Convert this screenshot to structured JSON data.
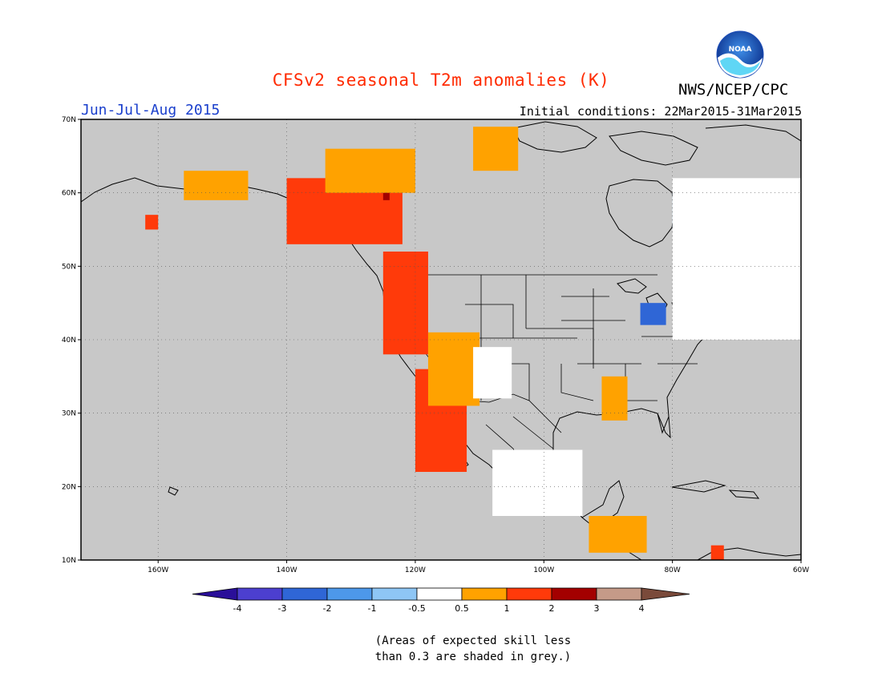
{
  "title": "CFSv2 seasonal T2m anomalies (K)",
  "org": "NWS/NCEP/CPC",
  "logo_text": "NOAA",
  "season": "Jun-Jul-Aug 2015",
  "initial_conditions": "Initial conditions: 22Mar2015-31Mar2015",
  "skill_note_line1": "(Areas of expected skill less",
  "skill_note_line2": "than 0.3 are shaded in grey.)",
  "map": {
    "projection": "cylindrical",
    "lon_range": [
      -172,
      -60
    ],
    "lat_range": [
      10,
      70
    ],
    "lon_ticks": [
      {
        "value": -160,
        "label": "160W"
      },
      {
        "value": -140,
        "label": "140W"
      },
      {
        "value": -120,
        "label": "120W"
      },
      {
        "value": -100,
        "label": "100W"
      },
      {
        "value": -80,
        "label": "80W"
      },
      {
        "value": -60,
        "label": "60W"
      }
    ],
    "lat_ticks": [
      {
        "value": 10,
        "label": "10N"
      },
      {
        "value": 20,
        "label": "20N"
      },
      {
        "value": 30,
        "label": "30N"
      },
      {
        "value": 40,
        "label": "40N"
      },
      {
        "value": 50,
        "label": "50N"
      },
      {
        "value": 60,
        "label": "60N"
      },
      {
        "value": 70,
        "label": "70N"
      }
    ],
    "grid": true,
    "background_color": "#c8c8c8"
  },
  "colorbar": {
    "levels": [
      "-4",
      "-3",
      "-2",
      "-1",
      "-0.5",
      "0.5",
      "1",
      "2",
      "3",
      "4"
    ],
    "colors": [
      "#2a0f99",
      "#4c3fcf",
      "#2f66d6",
      "#4d98ea",
      "#8ec6f5",
      "#ffffff",
      "#ffa200",
      "#ff3a0a",
      "#a30000",
      "#c59a88",
      "#7a4a3a"
    ]
  },
  "chart_data": {
    "type": "heatmap",
    "title": "CFSv2 seasonal T2m anomalies (K)",
    "period": "Jun-Jul-Aug 2015",
    "units": "K",
    "categories": [
      "<-4",
      "-4 to -3",
      "-3 to -2",
      "-2 to -1",
      "-1 to -0.5",
      "-0.5 to 0.5",
      "0.5 to 1",
      "1 to 2",
      "2 to 3",
      "3 to 4",
      ">4"
    ],
    "regions": [
      {
        "name": "Pacific Northwest coast",
        "lon": [
          -125,
          -118
        ],
        "lat": [
          38,
          52
        ],
        "anomaly_class": "1 to 2"
      },
      {
        "name": "British Columbia / Yukon",
        "lon": [
          -140,
          -122
        ],
        "lat": [
          53,
          62
        ],
        "anomaly_class": "1 to 2"
      },
      {
        "name": "Northern BC hotspot",
        "lon": [
          -125,
          -124
        ],
        "lat": [
          59,
          61
        ],
        "anomaly_class": "2 to 3"
      },
      {
        "name": "Southern Alaska",
        "lon": [
          -156,
          -146
        ],
        "lat": [
          59,
          63
        ],
        "anomaly_class": "0.5 to 1"
      },
      {
        "name": "Alaska Peninsula",
        "lon": [
          -162,
          -160
        ],
        "lat": [
          55,
          57
        ],
        "anomaly_class": "1 to 2"
      },
      {
        "name": "Northwest Territories",
        "lon": [
          -134,
          -120
        ],
        "lat": [
          60,
          66
        ],
        "anomaly_class": "0.5 to 1"
      },
      {
        "name": "Nunavut south",
        "lon": [
          -111,
          -104
        ],
        "lat": [
          63,
          69
        ],
        "anomaly_class": "0.5 to 1"
      },
      {
        "name": "California / Baja",
        "lon": [
          -120,
          -112
        ],
        "lat": [
          22,
          36
        ],
        "anomaly_class": "1 to 2"
      },
      {
        "name": "Great Basin / Southwest",
        "lon": [
          -118,
          -110
        ],
        "lat": [
          31,
          41
        ],
        "anomaly_class": "0.5 to 1"
      },
      {
        "name": "Four Corners",
        "lon": [
          -111,
          -105
        ],
        "lat": [
          32,
          39
        ],
        "anomaly_class": "-0.5 to 0.5"
      },
      {
        "name": "Great Lakes",
        "lon": [
          -85,
          -81
        ],
        "lat": [
          42,
          45
        ],
        "anomaly_class": "-3 to -2"
      },
      {
        "name": "Hudson Bay east",
        "lon": [
          -80,
          -77
        ],
        "lat": [
          55,
          60
        ],
        "anomaly_class": "-1 to -0.5"
      },
      {
        "name": "Eastern Canada / Quebec",
        "lon": [
          -80,
          -60
        ],
        "lat": [
          40,
          62
        ],
        "anomaly_class": "-0.5 to 0.5"
      },
      {
        "name": "Mexico interior",
        "lon": [
          -108,
          -94
        ],
        "lat": [
          16,
          25
        ],
        "anomaly_class": "-0.5 to 0.5"
      },
      {
        "name": "Central America coast",
        "lon": [
          -93,
          -84
        ],
        "lat": [
          11,
          16
        ],
        "anomaly_class": "0.5 to 1"
      },
      {
        "name": "Gulf coast",
        "lon": [
          -91,
          -87
        ],
        "lat": [
          29,
          35
        ],
        "anomaly_class": "0.5 to 1"
      },
      {
        "name": "Venezuela coast",
        "lon": [
          -74,
          -72
        ],
        "lat": [
          10,
          12
        ],
        "anomaly_class": "1 to 2"
      }
    ],
    "xlabel": "",
    "ylabel": ""
  }
}
